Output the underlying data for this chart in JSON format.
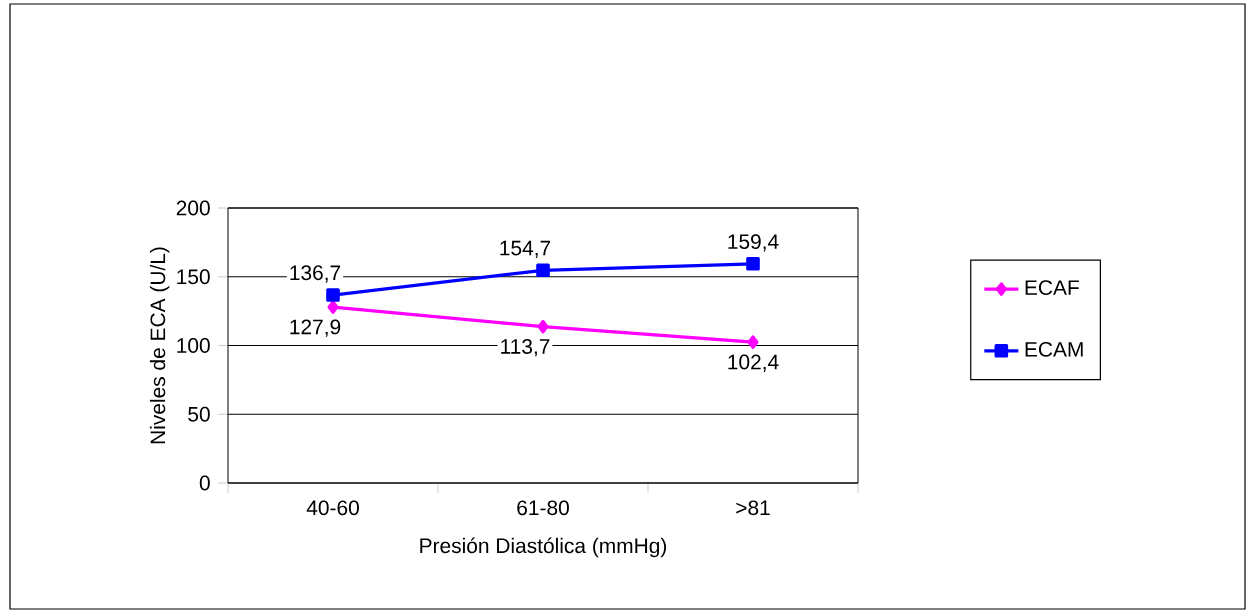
{
  "chart_data": {
    "type": "line",
    "xlabel": "Presión Diastólica (mmHg)",
    "ylabel": "Niveles de ECA (U/L)",
    "categories": [
      "40-60",
      "61-80",
      ">81"
    ],
    "series": [
      {
        "name": "ECAF",
        "color": "#ff00ff",
        "marker": "diamond",
        "values": [
          127.9,
          113.7,
          102.4
        ],
        "value_labels": [
          "127,9",
          "113,7",
          "102,4"
        ]
      },
      {
        "name": "ECAM",
        "color": "#0000ff",
        "marker": "square",
        "values": [
          136.7,
          154.7,
          159.4
        ],
        "value_labels": [
          "136,7",
          "154,7",
          "159,4"
        ]
      }
    ],
    "ylim": [
      0,
      200
    ],
    "yticks": [
      0,
      50,
      100,
      150,
      200
    ],
    "grid": "y",
    "legend": "right",
    "line_style": "solid"
  }
}
